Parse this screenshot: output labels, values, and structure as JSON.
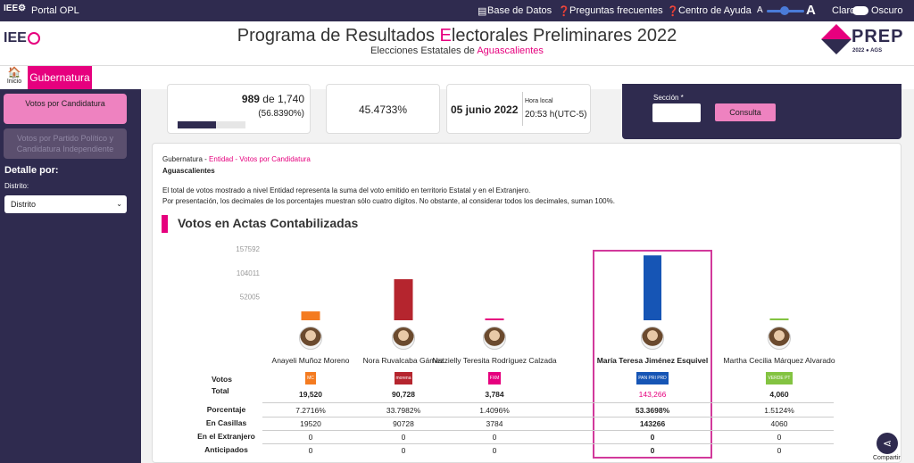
{
  "topbar": {
    "portal": "Portal OPL",
    "base": "Base de Datos",
    "faq": "Preguntas frecuentes",
    "help": "Centro de Ayuda",
    "a_small": "A",
    "a_big": "A",
    "claro": "Claro",
    "oscuro": "Oscuro"
  },
  "header": {
    "logo": "IEE",
    "title_pre": "Programa de Resultados ",
    "title_e": "E",
    "title_post": "lectorales Preliminares 2022",
    "subtitle_pre": "Elecciones Estatales de ",
    "subtitle_state": "Aguascalientes",
    "prep": "PREP",
    "prep_sub": "2022 ● AGS"
  },
  "nav": {
    "inicio": "Inicio",
    "tab": "Gubernatura"
  },
  "sidebar": {
    "btn1": "Votos por Candidatura",
    "btn2": "Votos por Partido Político y Candidatura Independiente",
    "detalle": "Detalle por:",
    "distrito_label": "Distrito:",
    "distrito_value": "Distrito"
  },
  "stats": {
    "actas": "989",
    "de": "de",
    "total": "1,740",
    "actas_pct": "(56.8390%)",
    "actas_fill": 0.5684,
    "participacion": "45.4733%",
    "fecha": "05 junio 2022",
    "hora_label": "Hora local",
    "hora": "20:53 h(UTC-5)",
    "seccion_label": "Sección *",
    "consulta": "Consulta"
  },
  "content": {
    "crumb_a": "Gubernatura - ",
    "crumb_b": "Entidad - Votos por Candidatura",
    "entity": "Aguascalientes",
    "note1": "El total de votos mostrado a nivel Entidad representa la suma del voto emitido en territorio Estatal y en el Extranjero.",
    "note2": "Por presentación, los decimales de los porcentajes muestran sólo cuatro dígitos. No obstante, al considerar todos los decimales, suman 100%.",
    "section_title": "Votos en Actas Contabilizadas"
  },
  "chart_data": {
    "type": "bar",
    "categories": [
      "Anayeli Muñoz Moreno",
      "Nora Ruvalcaba Gámez",
      "Natzielly Teresita Rodríguez Calzada",
      "María Teresa Jiménez Esquivel",
      "Martha Cecilia Márquez Alvarado"
    ],
    "values": [
      19520,
      90728,
      3784,
      143266,
      4060
    ],
    "ticks": [
      "157592",
      "104011",
      "52005"
    ],
    "ylim": [
      0,
      157592
    ],
    "colors": [
      "#f47b20",
      "#b5252e",
      "#e6007e",
      "#1655b5",
      "#83c341"
    ]
  },
  "table": {
    "labels": {
      "votos": "Votos",
      "total": "Total",
      "pct": "Porcentaje",
      "casillas": "En Casillas",
      "extranjero": "En el Extranjero",
      "anticipados": "Anticipados"
    },
    "candidates": [
      {
        "name": "Anayeli Muñoz Moreno",
        "total": "19,520",
        "pct": "7.2716%",
        "casillas": "19520",
        "extranjero": "0",
        "anticipados": "0",
        "party": "MC",
        "pcolor": "#f47b20"
      },
      {
        "name": "Nora Ruvalcaba Gámez",
        "total": "90,728",
        "pct": "33.7982%",
        "casillas": "90728",
        "extranjero": "0",
        "anticipados": "0",
        "party": "morena",
        "pcolor": "#b5252e"
      },
      {
        "name": "Natzielly Teresita Rodríguez Calzada",
        "total": "3,784",
        "pct": "1.4096%",
        "casillas": "3784",
        "extranjero": "0",
        "anticipados": "0",
        "party": "FXM",
        "pcolor": "#e6007e"
      },
      {
        "name": "María Teresa Jiménez Esquivel",
        "total": "143,266",
        "pct": "53.3698%",
        "casillas": "143266",
        "extranjero": "0",
        "anticipados": "0",
        "party": "PAN PRI PRD",
        "pcolor": "#1655b5"
      },
      {
        "name": "Martha Cecilia Márquez Alvarado",
        "total": "4,060",
        "pct": "1.5124%",
        "casillas": "4060",
        "extranjero": "0",
        "anticipados": "0",
        "party": "VERDE PT",
        "pcolor": "#83c341"
      }
    ]
  },
  "share": "Compartir",
  "colors": {
    "accent": "#e6007e",
    "dark": "#2f2b4f"
  }
}
